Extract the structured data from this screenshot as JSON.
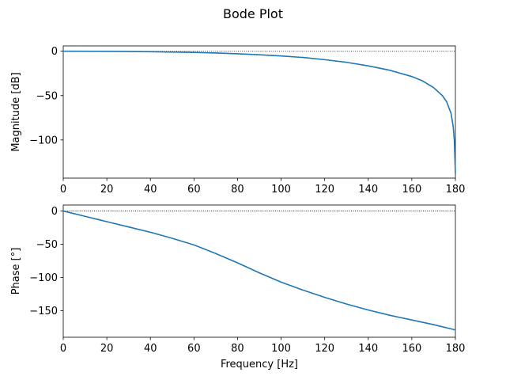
{
  "figure": {
    "title": "Bode Plot"
  },
  "chart_data": [
    {
      "type": "line",
      "title": "",
      "xlabel": "",
      "ylabel": "Magnitude [dB]",
      "xlim": [
        0,
        180
      ],
      "ylim": [
        -143,
        6
      ],
      "xticks": [
        0,
        20,
        40,
        60,
        80,
        100,
        120,
        140,
        160,
        180
      ],
      "yticks": [
        0,
        -50,
        -100
      ],
      "grid": false,
      "reference_line": {
        "y": 0,
        "style": "dotted",
        "color": "#000000"
      },
      "series": [
        {
          "color": "#1f77b4",
          "x": [
            0,
            20,
            40,
            60,
            70,
            80,
            90,
            100,
            110,
            120,
            130,
            140,
            150,
            160,
            165,
            170,
            174,
            176,
            178,
            179,
            179.5,
            180
          ],
          "y": [
            0,
            -0.1,
            -0.5,
            -1.3,
            -2.0,
            -2.9,
            -4.0,
            -5.3,
            -7.0,
            -9.5,
            -12.5,
            -16.5,
            -21.5,
            -28.5,
            -33.5,
            -41.0,
            -50.0,
            -57.0,
            -70.0,
            -85.0,
            -100.0,
            -138.0
          ]
        }
      ]
    },
    {
      "type": "line",
      "title": "",
      "xlabel": "Frequency [Hz]",
      "ylabel": "Phase [°]",
      "xlim": [
        0,
        180
      ],
      "ylim": [
        -190,
        9
      ],
      "xticks": [
        0,
        20,
        40,
        60,
        80,
        100,
        120,
        140,
        160,
        180
      ],
      "yticks": [
        0,
        -50,
        -100,
        -150
      ],
      "grid": false,
      "reference_line": {
        "y": 0,
        "style": "dotted",
        "color": "#000000"
      },
      "series": [
        {
          "color": "#1f77b4",
          "x": [
            0,
            10,
            20,
            30,
            40,
            50,
            60,
            70,
            80,
            90,
            100,
            110,
            120,
            130,
            140,
            150,
            160,
            170,
            180
          ],
          "y": [
            0,
            -8,
            -16,
            -24,
            -32,
            -41,
            -51,
            -64,
            -78,
            -93,
            -107,
            -119,
            -130,
            -140,
            -149,
            -157,
            -164,
            -171,
            -179
          ]
        }
      ]
    }
  ]
}
